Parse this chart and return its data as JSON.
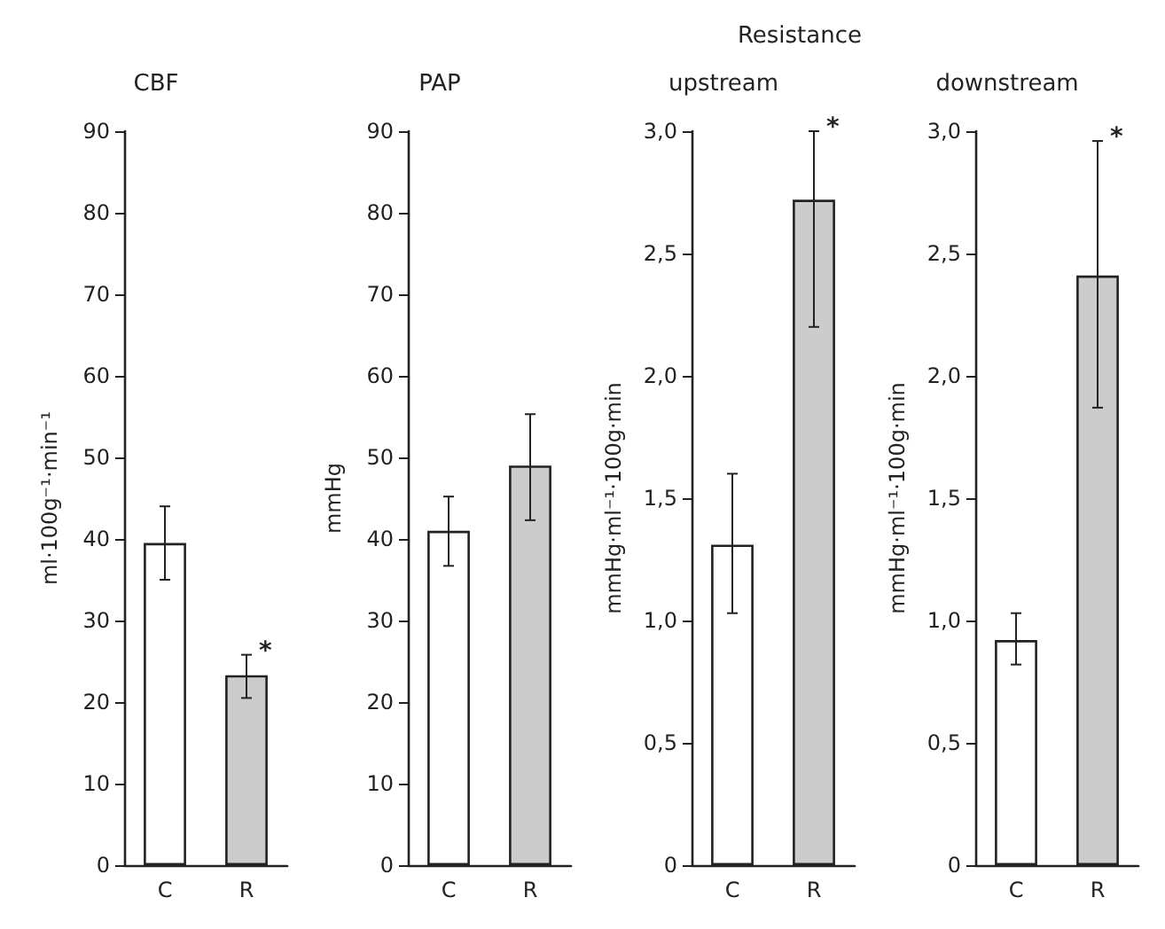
{
  "chart_data": [
    {
      "type": "bar",
      "title": "CBF",
      "ylabel": "ml·100g⁻¹·min⁻¹",
      "categories": [
        "C",
        "R"
      ],
      "values": [
        39.5,
        23.3
      ],
      "colors": [
        "#ffffff",
        "#cccccc"
      ],
      "errors": [
        [
          35,
          44
        ],
        [
          20.5,
          25.8
        ]
      ],
      "ylim": [
        0,
        90
      ],
      "yticks": [
        0,
        10,
        20,
        30,
        40,
        50,
        60,
        70,
        80,
        90
      ],
      "annotations": [
        {
          "text": "*",
          "x": "R",
          "y": 25.8
        }
      ]
    },
    {
      "type": "bar",
      "title": "PAP",
      "ylabel": "mmHg",
      "categories": [
        "C",
        "R"
      ],
      "values": [
        41,
        49
      ],
      "colors": [
        "#ffffff",
        "#cccccc"
      ],
      "errors": [
        [
          36.7,
          45.2
        ],
        [
          42.3,
          55.3
        ]
      ],
      "ylim": [
        0,
        90
      ],
      "yticks": [
        0,
        10,
        20,
        30,
        40,
        50,
        60,
        70,
        80,
        90
      ]
    },
    {
      "type": "bar",
      "title": "upstream",
      "ylabel": "mmHg·ml⁻¹·100g·min",
      "categories": [
        "C",
        "R"
      ],
      "values": [
        1.31,
        2.72
      ],
      "colors": [
        "#ffffff",
        "#cccccc"
      ],
      "errors": [
        [
          1.03,
          1.6
        ],
        [
          2.2,
          3.0
        ]
      ],
      "ylim": [
        0,
        3
      ],
      "yticks": [
        0,
        {
          "value": 0.5,
          "label": "0,5"
        },
        {
          "value": 1,
          "label": "1,0"
        },
        {
          "value": 1.5,
          "label": "1,5"
        },
        {
          "value": 2,
          "label": "2,0"
        },
        {
          "value": 2.5,
          "label": "2,5"
        },
        {
          "value": 3,
          "label": "3,0"
        }
      ],
      "annotations": [
        "Resistance",
        {
          "text": "*",
          "x": "R",
          "y": 3.0
        }
      ]
    },
    {
      "type": "bar",
      "title": "downstream",
      "ylabel": "mmHg·ml⁻¹·100g·min",
      "categories": [
        "C",
        "R"
      ],
      "values": [
        0.92,
        2.41
      ],
      "colors": [
        "#ffffff",
        "#cccccc"
      ],
      "errors": [
        [
          0.82,
          1.03
        ],
        [
          1.87,
          2.96
        ]
      ],
      "ylim": [
        0,
        3
      ],
      "yticks": [
        0,
        {
          "value": 0.5,
          "label": "0,5"
        },
        {
          "value": 1,
          "label": "1,0"
        },
        {
          "value": 1.5,
          "label": "1,5"
        },
        {
          "value": 2,
          "label": "2,0"
        },
        {
          "value": 2.5,
          "label": "2,5"
        },
        {
          "value": 3,
          "label": "3,0"
        }
      ],
      "annotations": [
        {
          "text": "*",
          "x": "R",
          "y": 2.96
        }
      ]
    }
  ]
}
